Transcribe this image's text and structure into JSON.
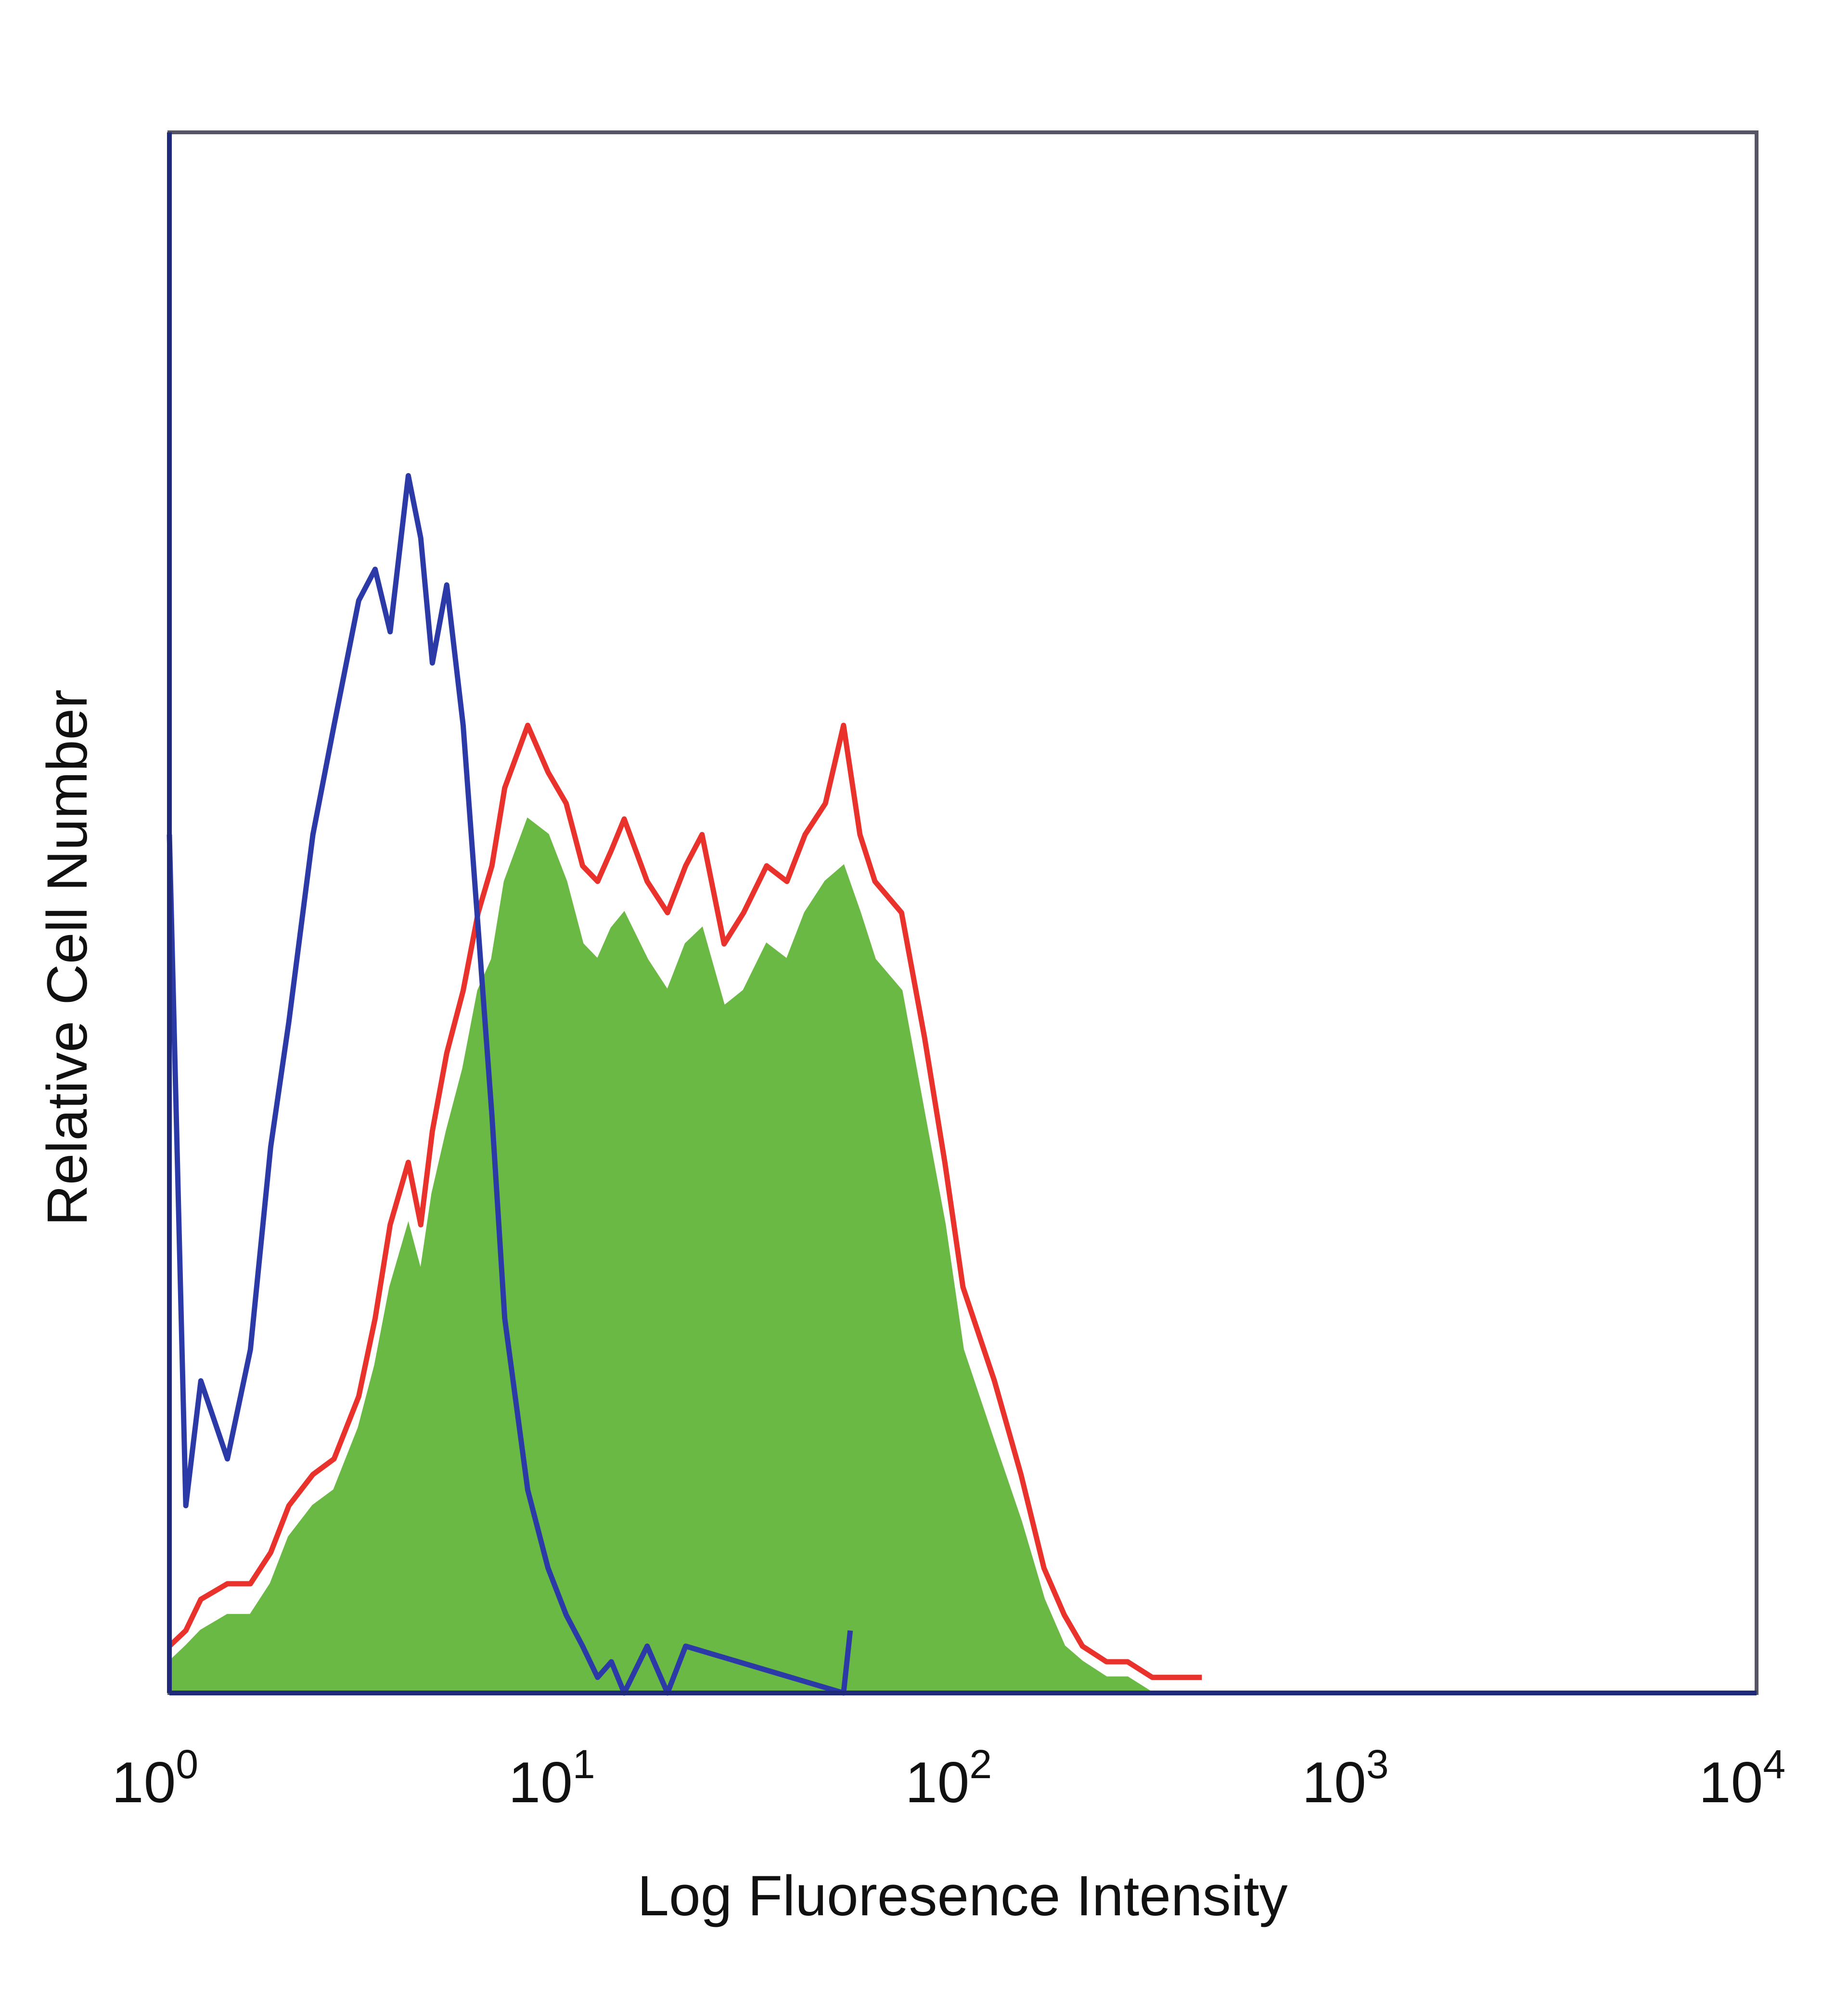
{
  "chart_data": {
    "type": "area",
    "title": "",
    "xlabel": "Log Fluoresence Intensity",
    "ylabel": "Relative Cell Number",
    "xscale": "log",
    "xlim": [
      1,
      10000
    ],
    "ylim": [
      0,
      100
    ],
    "xticks": [
      {
        "base": "10",
        "exp": "0",
        "value": 1
      },
      {
        "base": "10",
        "exp": "1",
        "value": 10
      },
      {
        "base": "10",
        "exp": "2",
        "value": 100
      },
      {
        "base": "10",
        "exp": "3",
        "value": 1000
      },
      {
        "base": "10",
        "exp": "4",
        "value": 10000
      }
    ],
    "grid": false,
    "legend": "none",
    "series": [
      {
        "style": "outline",
        "color": "#2c3aa8",
        "x": [
          1.0,
          1.1,
          1.2,
          1.4,
          1.6,
          1.8,
          2.0,
          2.3,
          2.6,
          3.0,
          3.3,
          3.6,
          4.0,
          4.3,
          4.6,
          5.0,
          5.5,
          6.0,
          6.5,
          7.0,
          8.0,
          9.0,
          10.0,
          11.0,
          12.0,
          13.0,
          14.0,
          16.0,
          18.0,
          20.0,
          50.0,
          52.0
        ],
        "values": [
          55,
          12,
          20,
          15,
          22,
          35,
          43,
          55,
          62,
          70,
          72,
          68,
          78,
          74,
          66,
          71,
          62,
          49,
          37,
          24,
          13,
          8,
          5,
          3,
          1,
          2,
          0,
          3,
          0,
          3,
          0,
          4
        ]
      },
      {
        "style": "outline",
        "color": "#e8322b",
        "x": [
          1.0,
          1.1,
          1.2,
          1.4,
          1.6,
          1.8,
          2.0,
          2.3,
          2.6,
          3.0,
          3.3,
          3.6,
          4.0,
          4.3,
          4.6,
          5.0,
          5.5,
          6.0,
          6.5,
          7.0,
          8.0,
          9.0,
          10.0,
          11.0,
          12.0,
          13.0,
          14.0,
          16.0,
          18.0,
          20.0,
          22.0,
          25.0,
          28.0,
          32.0,
          36.0,
          40.0,
          45.0,
          50.0,
          55.0,
          60.0,
          70.0,
          80.0,
          90.0,
          100.0,
          120.0,
          140.0,
          160.0,
          180.0,
          200.0,
          230.0,
          260.0,
          300.0,
          350.0,
          400.0
        ],
        "values": [
          3,
          4,
          6,
          7,
          7,
          9,
          12,
          14,
          15,
          19,
          24,
          30,
          34,
          30,
          36,
          41,
          45,
          50,
          53,
          58,
          62,
          59,
          57,
          53,
          52,
          54,
          56,
          52,
          50,
          53,
          55,
          48,
          50,
          53,
          52,
          55,
          57,
          62,
          55,
          52,
          50,
          42,
          34,
          26,
          20,
          14,
          8,
          5,
          3,
          2,
          2,
          1,
          1,
          1
        ]
      },
      {
        "style": "filled",
        "color": "#6ab944",
        "x": [
          1.0,
          1.1,
          1.2,
          1.4,
          1.6,
          1.8,
          2.0,
          2.3,
          2.6,
          3.0,
          3.3,
          3.6,
          4.0,
          4.3,
          4.6,
          5.0,
          5.5,
          6.0,
          6.5,
          7.0,
          8.0,
          9.0,
          10.0,
          11.0,
          12.0,
          13.0,
          14.0,
          16.0,
          18.0,
          20.0,
          22.0,
          25.0,
          28.0,
          32.0,
          36.0,
          40.0,
          45.0,
          50.0,
          55.0,
          60.0,
          70.0,
          80.0,
          90.0,
          100.0,
          120.0,
          140.0,
          160.0,
          180.0,
          200.0,
          230.0,
          260.0,
          300.0,
          350.0,
          400.0
        ],
        "values": [
          2,
          3,
          4,
          5,
          5,
          7,
          10,
          12,
          13,
          17,
          21,
          26,
          30,
          27,
          32,
          36,
          40,
          45,
          47,
          52,
          56,
          55,
          52,
          48,
          47,
          49,
          50,
          47,
          45,
          48,
          49,
          44,
          45,
          48,
          47,
          50,
          52,
          53,
          50,
          47,
          45,
          37,
          30,
          22,
          16,
          11,
          6,
          3,
          2,
          1,
          1,
          0,
          0,
          0
        ]
      }
    ]
  }
}
